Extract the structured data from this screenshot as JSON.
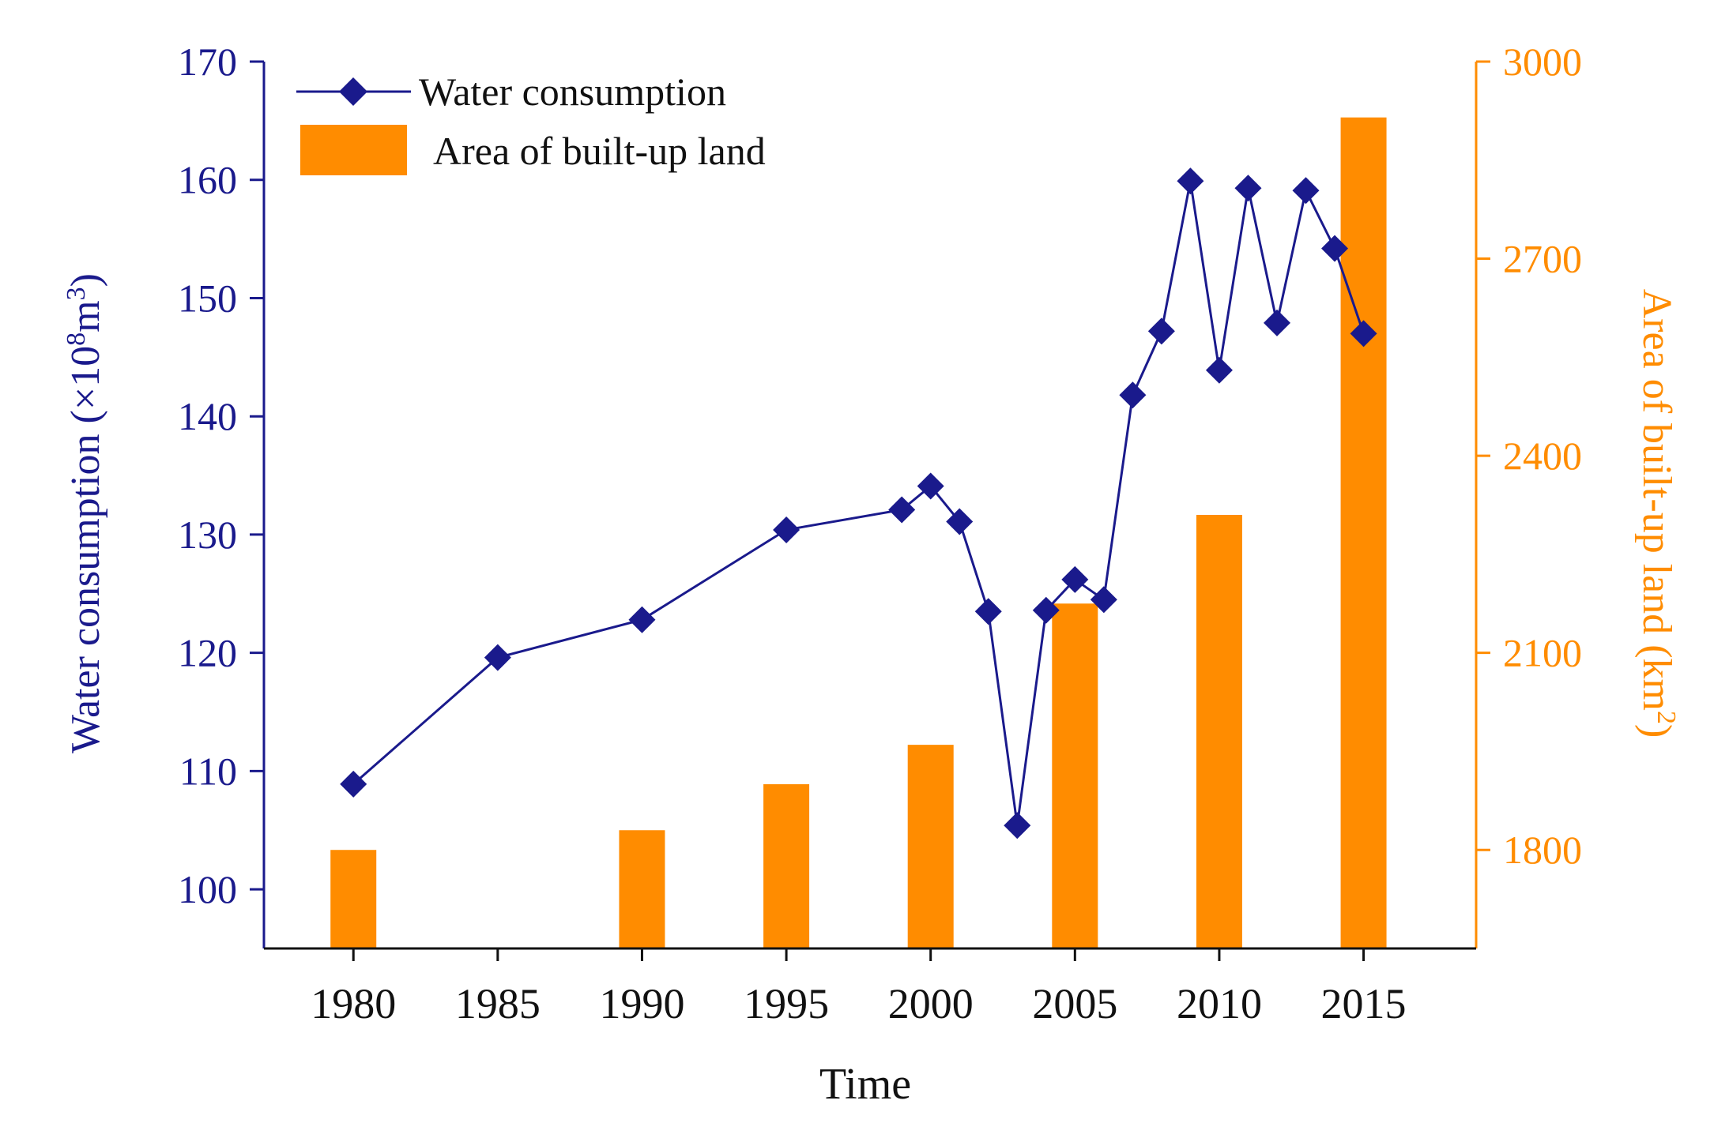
{
  "chart_data": {
    "type": "bar+line",
    "xlabel": "Time",
    "x_ticks": [
      "1980",
      "1985",
      "1990",
      "1995",
      "2000",
      "2005",
      "2010",
      "2015"
    ],
    "xlim": [
      1976.9,
      2018.9
    ],
    "left_axis": {
      "label_main": "Water consumption (×10",
      "label_sup1": "8",
      "label_mid": "m",
      "label_sup2": "3",
      "label_end": ")",
      "ylim": [
        95,
        170
      ],
      "ticks": [
        "100",
        "110",
        "120",
        "130",
        "140",
        "150",
        "160",
        "170"
      ],
      "color": "#1a1a8c"
    },
    "right_axis": {
      "label_main": "Area of built-up land (km",
      "label_sup": "2",
      "label_end": ")",
      "ylim": [
        1650,
        3000
      ],
      "ticks": [
        "1800",
        "2100",
        "2400",
        "2700",
        "3000"
      ],
      "color": "#ff8c00"
    },
    "series": [
      {
        "name": "Water consumption",
        "type": "line",
        "axis": "left",
        "color": "#1a1a8c",
        "marker": "diamond",
        "x": [
          1980,
          1985,
          1990,
          1995,
          1999,
          2000,
          2001,
          2002,
          2003,
          2004,
          2005,
          2006,
          2007,
          2008,
          2009,
          2010,
          2011,
          2012,
          2013,
          2014,
          2015
        ],
        "values": [
          108.9,
          119.6,
          122.8,
          130.4,
          132.1,
          134.1,
          131.1,
          123.5,
          105.4,
          123.6,
          126.2,
          124.5,
          141.8,
          147.2,
          159.9,
          143.9,
          159.3,
          147.9,
          159.1,
          154.2,
          147.0
        ]
      },
      {
        "name": "Area of built-up land",
        "type": "bar",
        "axis": "right",
        "color": "#ff8c00",
        "x": [
          1980,
          1990,
          1995,
          2000,
          2005,
          2010,
          2015
        ],
        "values": [
          1800,
          1830,
          1900,
          1960,
          2175,
          2310,
          2915
        ]
      }
    ],
    "legend": {
      "position": "top-left",
      "entries": [
        "Water consumption",
        "Area of built-up land"
      ]
    }
  }
}
